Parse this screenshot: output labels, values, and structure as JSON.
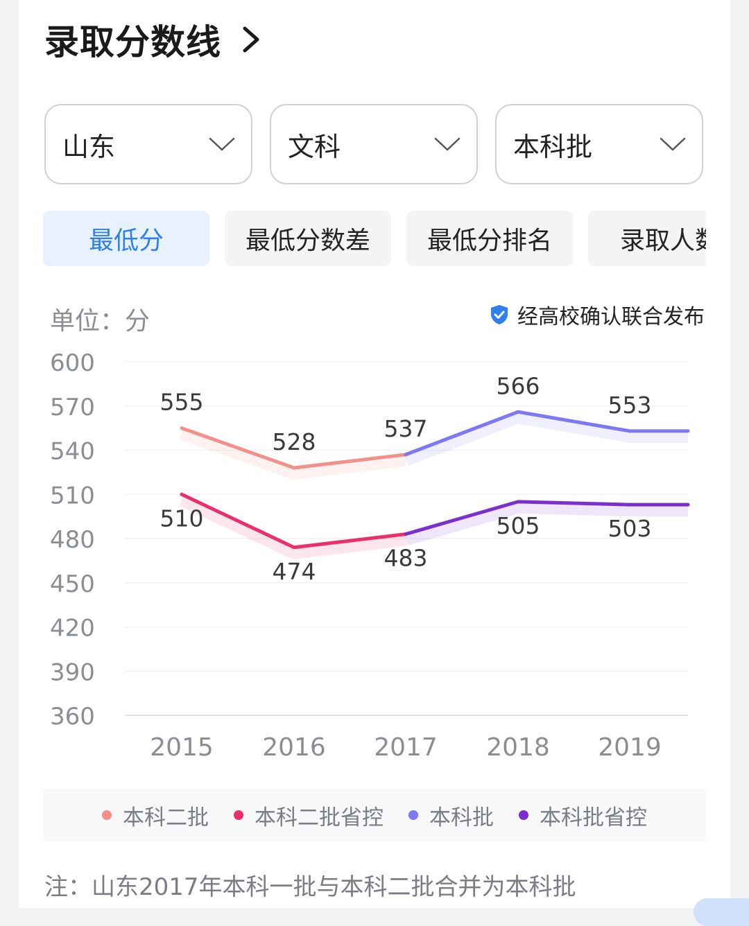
{
  "header": {
    "title": "录取分数线"
  },
  "filters": [
    {
      "value": "山东"
    },
    {
      "value": "文科"
    },
    {
      "value": "本科批"
    }
  ],
  "tabs": [
    {
      "label": "最低分",
      "active": true
    },
    {
      "label": "最低分数差",
      "active": false
    },
    {
      "label": "最低分排名",
      "active": false
    },
    {
      "label": "录取人数",
      "active": false
    }
  ],
  "unit_label": "单位：分",
  "verified_label": "经高校确认联合发布",
  "colors": {
    "accent": "#2f80ed",
    "series_1": "#f4908a",
    "series_2": "#ea2f6b",
    "series_3": "#7d78f3",
    "series_4": "#7b2fd0"
  },
  "chart_data": {
    "type": "line",
    "categories": [
      "2015",
      "2016",
      "2017",
      "2018",
      "2019"
    ],
    "ylim": [
      360,
      600
    ],
    "yticks": [
      600,
      570,
      540,
      510,
      480,
      450,
      420,
      390,
      360
    ],
    "grid": true,
    "legend_position": "bottom",
    "series": [
      {
        "name": "本科二批",
        "color": "#f4908a",
        "values": [
          555,
          528,
          537,
          null,
          null
        ],
        "label_pos": "above"
      },
      {
        "name": "本科二批省控",
        "color": "#ea2f6b",
        "values": [
          510,
          474,
          483,
          null,
          null
        ],
        "label_pos": "below"
      },
      {
        "name": "本科批",
        "color": "#7d78f3",
        "values": [
          null,
          null,
          537,
          566,
          553
        ],
        "tail": 553,
        "label_pos": "above",
        "labeled_from": 3
      },
      {
        "name": "本科批省控",
        "color": "#7b2fd0",
        "values": [
          null,
          null,
          483,
          505,
          503
        ],
        "tail": 503,
        "label_pos": "below",
        "labeled_from": 3
      }
    ]
  },
  "legend": [
    {
      "label": "本科二批",
      "color": "#f4908a"
    },
    {
      "label": "本科二批省控",
      "color": "#ea2f6b"
    },
    {
      "label": "本科批",
      "color": "#7d78f3"
    },
    {
      "label": "本科批省控",
      "color": "#7b2fd0"
    }
  ],
  "note": "注：山东2017年本科一批与本科二批合并为本科批"
}
